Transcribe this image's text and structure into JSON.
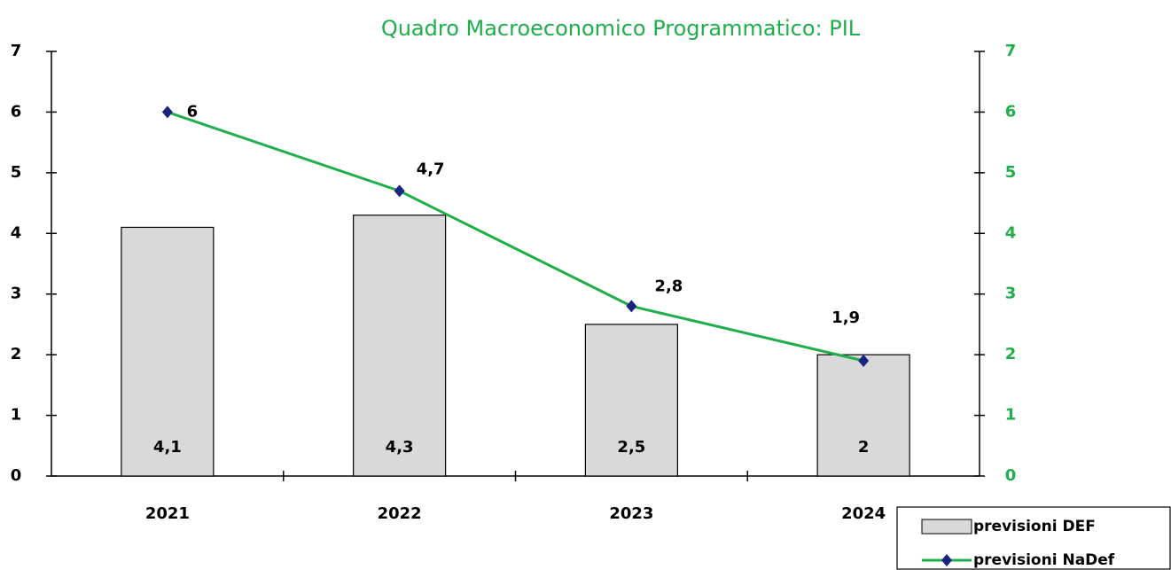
{
  "chart_data": {
    "type": "bar_line",
    "title": "Quadro Macroeconomico Programmatico: PIL",
    "categories": [
      "2021",
      "2022",
      "2023",
      "2024"
    ],
    "series": [
      {
        "name": "previsioni DEF",
        "type": "bar",
        "color": "#d9d9d9",
        "values": [
          4.1,
          4.3,
          2.5,
          2
        ],
        "value_labels": [
          "4,1",
          "4,3",
          "2,5",
          "2"
        ]
      },
      {
        "name": "previsioni NaDef",
        "type": "line",
        "axis": "y2",
        "color": "#1fae4b",
        "marker_color": "#1a237e",
        "values": [
          6,
          4.7,
          2.8,
          1.9
        ],
        "value_labels": [
          "6",
          "4,7",
          "2,8",
          "1,9"
        ]
      }
    ],
    "ylim": [
      0,
      7
    ],
    "yticks": [
      0,
      1,
      2,
      3,
      4,
      5,
      6,
      7
    ],
    "y2lim": [
      0,
      7
    ],
    "y2ticks": [
      0,
      1,
      2,
      3,
      4,
      5,
      6,
      7
    ],
    "y2_color": "#1fae4b",
    "grid": false,
    "legend": "lower right"
  }
}
